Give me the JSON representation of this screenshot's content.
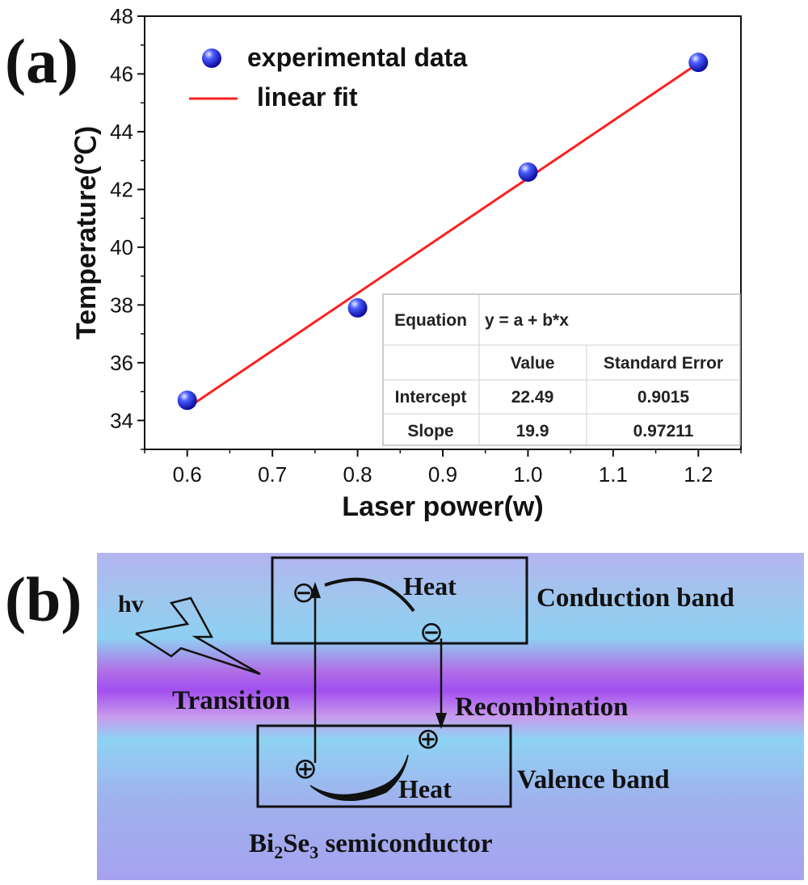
{
  "panel_a": {
    "label": "(a)",
    "legend": {
      "points_label": "experimental data",
      "line_label": "linear fit"
    },
    "fit_table": {
      "equation_label": "Equation",
      "equation": "y = a + b*x",
      "value_header": "Value",
      "stderr_header": "Standard Error",
      "rows": [
        {
          "name": "Intercept",
          "value": "22.49",
          "stderr": "0.9015"
        },
        {
          "name": "Slope",
          "value": "19.9",
          "stderr": "0.97211"
        }
      ]
    }
  },
  "chart_data": {
    "type": "scatter",
    "title": "",
    "xlabel": "Laser power(w)",
    "ylabel": "Temperature(℃)",
    "xlim": [
      0.55,
      1.25
    ],
    "ylim": [
      33,
      48
    ],
    "xticks": [
      "0.6",
      "0.7",
      "0.8",
      "0.9",
      "1.0",
      "1.1",
      "1.2"
    ],
    "yticks": [
      "34",
      "36",
      "38",
      "40",
      "42",
      "44",
      "46",
      "48"
    ],
    "grid": false,
    "legend_position": "top-left",
    "series": [
      {
        "name": "experimental data",
        "kind": "points",
        "color": "#1a1aff",
        "x": [
          0.6,
          0.8,
          1.0,
          1.2
        ],
        "y": [
          34.7,
          37.9,
          42.6,
          46.4
        ]
      },
      {
        "name": "linear fit",
        "kind": "line",
        "color": "#ff2020",
        "x": [
          0.6,
          1.2
        ],
        "y": [
          34.43,
          46.37
        ]
      }
    ]
  },
  "panel_b": {
    "label": "(b)",
    "hv": "hv",
    "heat_top": "Heat",
    "heat_bottom": "Heat",
    "conduction_band": "Conduction band",
    "valence_band": "Valence band",
    "transition": "Transition",
    "recombination": "Recombination",
    "semiconductor_prefix": "Bi",
    "semiconductor_sub1": "2",
    "semiconductor_mid": "Se",
    "semiconductor_sub2": "3",
    "semiconductor_suffix": " semiconductor",
    "electron_symbol": "⊖",
    "hole_symbol": "⊕"
  }
}
